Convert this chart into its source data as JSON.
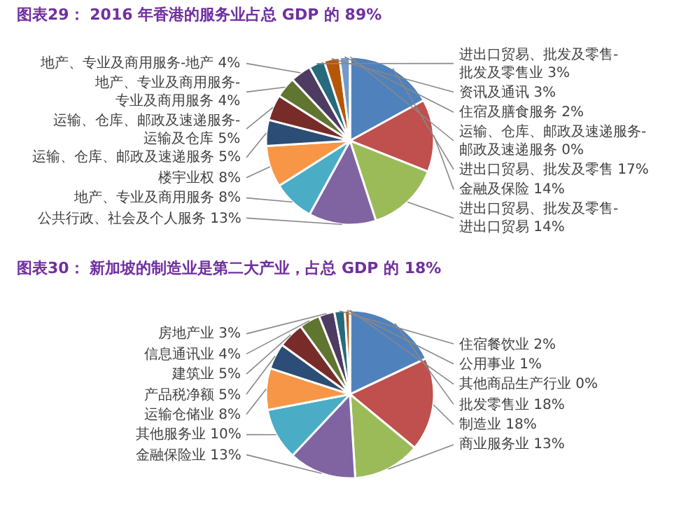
{
  "chart_data": [
    {
      "type": "pie",
      "title": "图表29： 2016 年香港的服务业占总 GDP 的 89%",
      "categories": [
        "进出口贸易、批发及零售",
        "金融及保险",
        "进出口贸易、批发及零售-进出口贸易",
        "公共行政、社会及个人服务",
        "地产、专业及商用服务",
        "楼宇业权",
        "运输、仓库、邮政及速递服务",
        "运输、仓库、邮政及速递服务-运输及仓库",
        "地产、专业及商用服务-专业及商用服务",
        "地产、专业及商用服务-地产",
        "进出口贸易、批发及零售-批发及零售业",
        "资讯及通讯",
        "住宿及膳食服务",
        "运输、仓库、邮政及速递服务-邮政及速递服务"
      ],
      "values": [
        17,
        14,
        14,
        13,
        8,
        8,
        5,
        5,
        4,
        4,
        3,
        3,
        2,
        0
      ],
      "value_labels": [
        "17%",
        "14%",
        "14%",
        "13%",
        "8%",
        "8%",
        "5%",
        "5%",
        "4%",
        "4%",
        "3%",
        "3%",
        "2%",
        "0%"
      ],
      "colors": [
        "#4f81bd",
        "#c0504d",
        "#9bbb59",
        "#8064a2",
        "#4bacc6",
        "#f79646",
        "#2c4d75",
        "#772c2a",
        "#5f7530",
        "#4d3b62",
        "#276a7c",
        "#b65708",
        "#729aca",
        "#cd7371"
      ],
      "legend": false
    },
    {
      "type": "pie",
      "title": "图表30： 新加坡的制造业是第二大产业，占总 GDP 的 18%",
      "categories": [
        "批发零售业",
        "制造业",
        "商业服务业",
        "金融保险业",
        "其他服务业",
        "运输仓储业",
        "产品税净额",
        "建筑业",
        "信息通讯业",
        "房地产业",
        "住宿餐饮业",
        "公用事业",
        "其他商品生产行业"
      ],
      "values": [
        18,
        18,
        13,
        13,
        10,
        8,
        5,
        5,
        4,
        3,
        2,
        1,
        0
      ],
      "value_labels": [
        "18%",
        "18%",
        "13%",
        "13%",
        "10%",
        "8%",
        "5%",
        "5%",
        "4%",
        "3%",
        "2%",
        "1%",
        "0%"
      ],
      "colors": [
        "#4f81bd",
        "#c0504d",
        "#9bbb59",
        "#8064a2",
        "#4bacc6",
        "#f79646",
        "#2c4d75",
        "#772c2a",
        "#5f7530",
        "#4d3b62",
        "#276a7c",
        "#b65708",
        "#729aca"
      ],
      "legend": false
    }
  ]
}
